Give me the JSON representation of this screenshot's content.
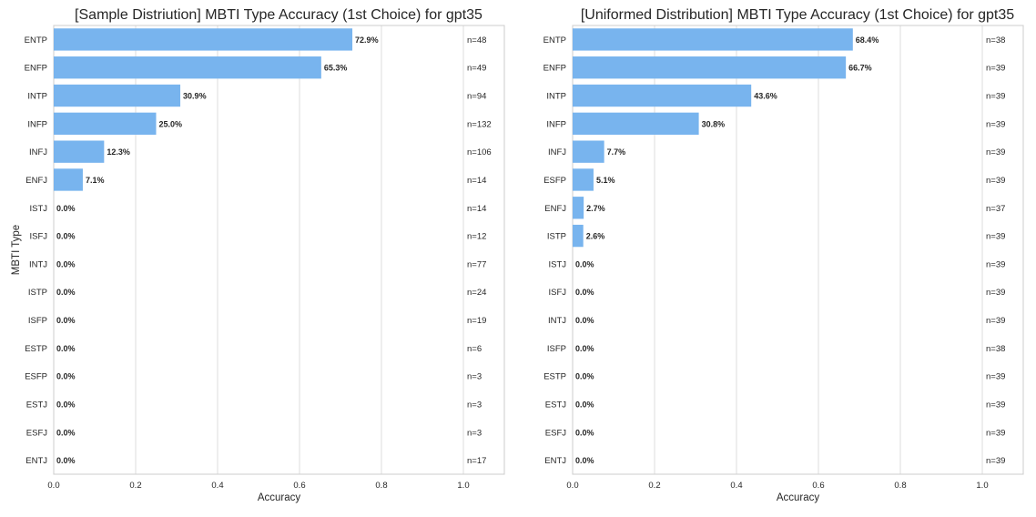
{
  "chart_data": [
    {
      "type": "bar",
      "orientation": "horizontal",
      "title": "[Sample Distriution] MBTI Type Accuracy (1st Choice) for gpt35",
      "xlabel": "Accuracy",
      "ylabel": "MBTI Type",
      "xlim": [
        0.0,
        1.1
      ],
      "xticks": [
        "0.0",
        "0.2",
        "0.4",
        "0.6",
        "0.8",
        "1.0"
      ],
      "grid": "vertical",
      "bar_color": "#78b4ee",
      "categories": [
        "ENTP",
        "ENFP",
        "INTP",
        "INFP",
        "INFJ",
        "ENFJ",
        "ISTJ",
        "ISFJ",
        "INTJ",
        "ISTP",
        "ISFP",
        "ESTP",
        "ESFP",
        "ESTJ",
        "ESFJ",
        "ENTJ"
      ],
      "values": [
        0.729,
        0.653,
        0.309,
        0.25,
        0.123,
        0.071,
        0,
        0,
        0,
        0,
        0,
        0,
        0,
        0,
        0,
        0
      ],
      "value_labels": [
        "72.9%",
        "65.3%",
        "30.9%",
        "25.0%",
        "12.3%",
        "7.1%",
        "0.0%",
        "0.0%",
        "0.0%",
        "0.0%",
        "0.0%",
        "0.0%",
        "0.0%",
        "0.0%",
        "0.0%",
        "0.0%"
      ],
      "n_labels": [
        "n=48",
        "n=49",
        "n=94",
        "n=132",
        "n=106",
        "n=14",
        "n=14",
        "n=12",
        "n=77",
        "n=24",
        "n=19",
        "n=6",
        "n=3",
        "n=3",
        "n=3",
        "n=17"
      ]
    },
    {
      "type": "bar",
      "orientation": "horizontal",
      "title": "[Uniformed Distribution] MBTI Type Accuracy (1st Choice) for gpt35",
      "xlabel": "Accuracy",
      "ylabel": "",
      "xlim": [
        0.0,
        1.1
      ],
      "xticks": [
        "0.0",
        "0.2",
        "0.4",
        "0.6",
        "0.8",
        "1.0"
      ],
      "grid": "vertical",
      "bar_color": "#78b4ee",
      "categories": [
        "ENTP",
        "ENFP",
        "INTP",
        "INFP",
        "INFJ",
        "ESFP",
        "ENFJ",
        "ISTP",
        "ISTJ",
        "ISFJ",
        "INTJ",
        "ISFP",
        "ESTP",
        "ESTJ",
        "ESFJ",
        "ENTJ"
      ],
      "values": [
        0.684,
        0.667,
        0.436,
        0.308,
        0.077,
        0.051,
        0.027,
        0.026,
        0,
        0,
        0,
        0,
        0,
        0,
        0,
        0
      ],
      "value_labels": [
        "68.4%",
        "66.7%",
        "43.6%",
        "30.8%",
        "7.7%",
        "5.1%",
        "2.7%",
        "2.6%",
        "0.0%",
        "0.0%",
        "0.0%",
        "0.0%",
        "0.0%",
        "0.0%",
        "0.0%",
        "0.0%"
      ],
      "n_labels": [
        "n=38",
        "n=39",
        "n=39",
        "n=39",
        "n=39",
        "n=39",
        "n=37",
        "n=39",
        "n=39",
        "n=39",
        "n=39",
        "n=38",
        "n=39",
        "n=39",
        "n=39",
        "n=39"
      ]
    }
  ]
}
